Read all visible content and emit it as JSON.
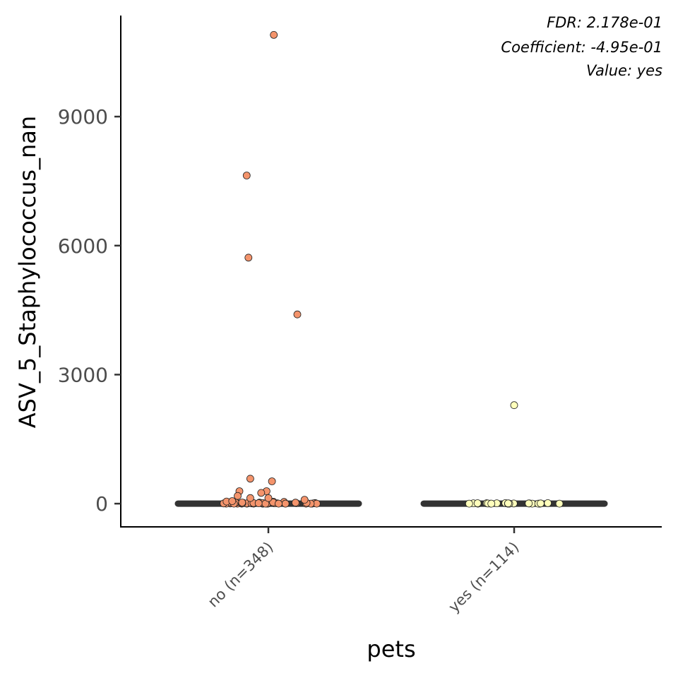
{
  "chart_data": {
    "type": "scatter",
    "xlabel": "pets",
    "ylabel": "ASV_5_Staphylococcus_nan",
    "categories": [
      "no (n=348)",
      "yes (n=114)"
    ],
    "yticks": [
      0,
      3000,
      6000,
      9000
    ],
    "ylim": [
      -540,
      11350
    ],
    "annotations": [
      "FDR: 2.178e-01",
      "Coefficient: -4.95e-01",
      "Value: yes"
    ],
    "series": [
      {
        "category": "no (n=348)",
        "color": "#F4946C",
        "median": 0,
        "outliers": [
          {
            "x": 0.03,
            "y": 10900
          },
          {
            "x": -0.12,
            "y": 7630
          },
          {
            "x": -0.11,
            "y": 5720
          },
          {
            "x": 0.16,
            "y": 4400
          },
          {
            "x": -0.1,
            "y": 580
          },
          {
            "x": 0.02,
            "y": 520
          },
          {
            "x": -0.16,
            "y": 290
          },
          {
            "x": -0.01,
            "y": 290
          },
          {
            "x": -0.04,
            "y": 250
          },
          {
            "x": -0.1,
            "y": 130
          },
          {
            "x": -0.17,
            "y": 180
          },
          {
            "x": 0.0,
            "y": 130
          },
          {
            "x": -0.2,
            "y": 60
          },
          {
            "x": 0.2,
            "y": 90
          }
        ],
        "jitter_values": [
          0,
          10,
          5,
          20,
          0,
          15,
          30,
          0,
          8,
          25,
          0,
          12,
          40,
          0,
          5,
          18,
          0,
          22,
          10,
          0,
          35,
          5,
          0,
          14,
          28,
          0,
          9,
          0,
          16,
          45,
          0,
          6,
          20,
          0,
          11,
          0,
          30,
          7,
          0,
          24,
          0,
          13,
          50,
          0,
          8,
          19,
          0,
          27,
          0,
          10
        ]
      },
      {
        "category": "yes (n=114)",
        "color": "#FFFFBB",
        "median": 0,
        "outliers": [
          {
            "x": 0.0,
            "y": 2290
          }
        ],
        "jitter_values": [
          0,
          5,
          0,
          10,
          0,
          8,
          0,
          12,
          0,
          6,
          0,
          9,
          0,
          4,
          0,
          11,
          0,
          7,
          0,
          3,
          0,
          10,
          0,
          5
        ]
      }
    ]
  }
}
